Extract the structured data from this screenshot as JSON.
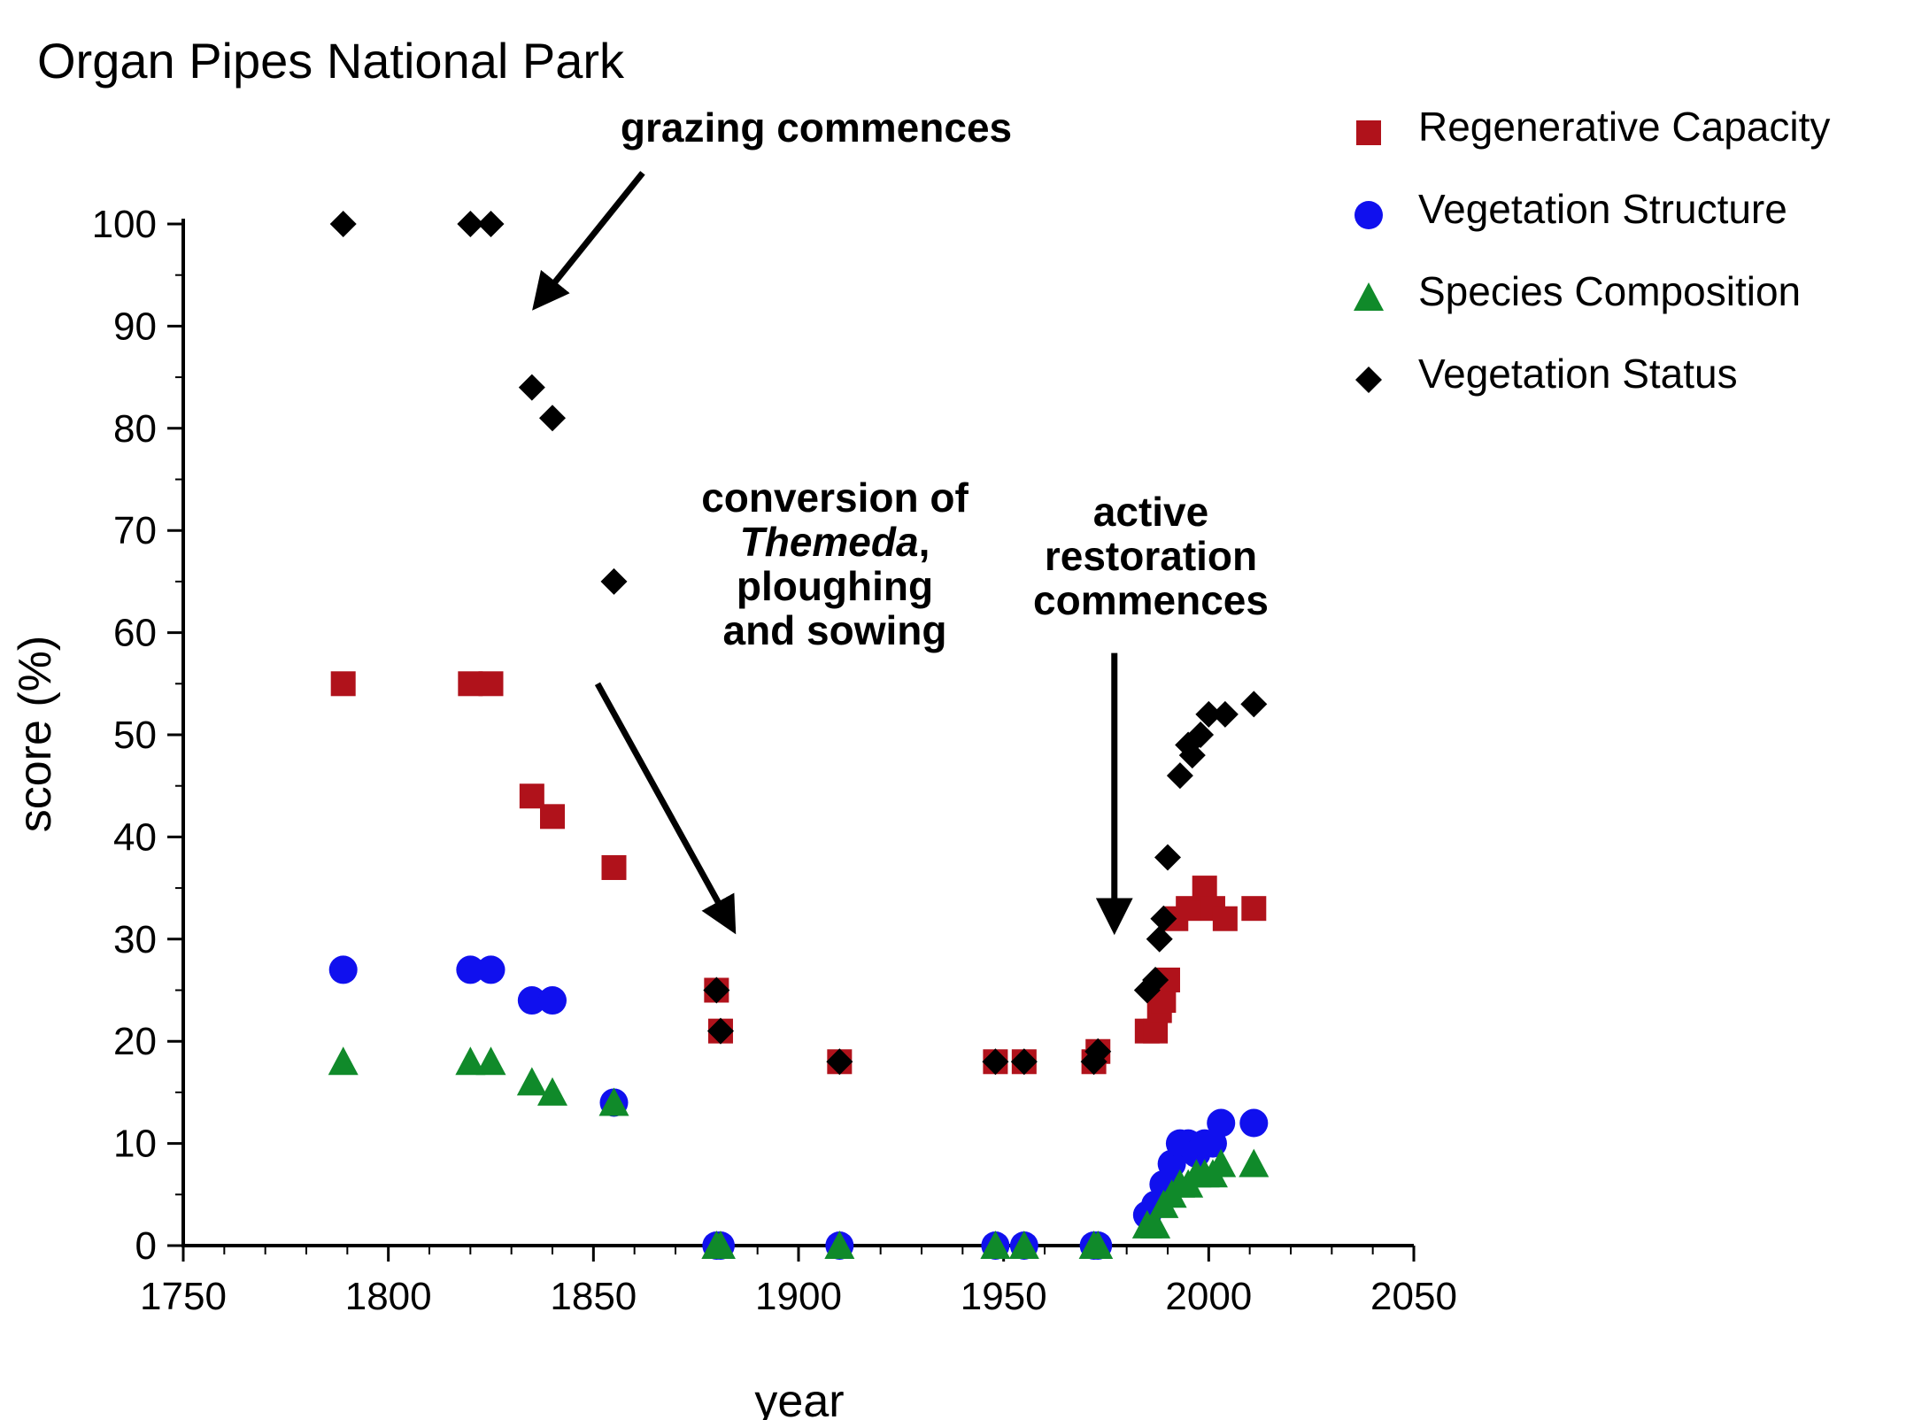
{
  "chart_data": {
    "type": "scatter",
    "title": "Organ Pipes National Park",
    "xlabel": "year",
    "ylabel": "score (%)",
    "xlim": [
      1750,
      2050
    ],
    "ylim": [
      0,
      100
    ],
    "xticks": [
      1750,
      1800,
      1850,
      1900,
      1950,
      2000,
      2050
    ],
    "yticks": [
      0,
      10,
      20,
      30,
      40,
      50,
      60,
      70,
      80,
      90,
      100
    ],
    "legend_position": "top-right",
    "series": [
      {
        "name": "Regenerative Capacity",
        "marker": "square",
        "color": "#b0121b",
        "points": [
          [
            1789,
            55
          ],
          [
            1820,
            55
          ],
          [
            1825,
            55
          ],
          [
            1835,
            44
          ],
          [
            1840,
            42
          ],
          [
            1855,
            37
          ],
          [
            1880,
            25
          ],
          [
            1881,
            21
          ],
          [
            1910,
            18
          ],
          [
            1948,
            18
          ],
          [
            1955,
            18
          ],
          [
            1972,
            18
          ],
          [
            1973,
            19
          ],
          [
            1985,
            21
          ],
          [
            1987,
            21
          ],
          [
            1988,
            23
          ],
          [
            1989,
            24
          ],
          [
            1990,
            26
          ],
          [
            1992,
            32
          ],
          [
            1995,
            33
          ],
          [
            1999,
            35
          ],
          [
            2001,
            33
          ],
          [
            2004,
            32
          ],
          [
            2011,
            33
          ]
        ]
      },
      {
        "name": "Vegetation Structure",
        "marker": "circle",
        "color": "#1010ee",
        "points": [
          [
            1789,
            27
          ],
          [
            1820,
            27
          ],
          [
            1825,
            27
          ],
          [
            1835,
            24
          ],
          [
            1840,
            24
          ],
          [
            1855,
            14
          ],
          [
            1880,
            0
          ],
          [
            1881,
            0
          ],
          [
            1910,
            0
          ],
          [
            1948,
            0
          ],
          [
            1955,
            0
          ],
          [
            1972,
            0
          ],
          [
            1973,
            0
          ],
          [
            1985,
            3
          ],
          [
            1987,
            4
          ],
          [
            1989,
            6
          ],
          [
            1991,
            8
          ],
          [
            1993,
            10
          ],
          [
            1995,
            10
          ],
          [
            1997,
            9
          ],
          [
            1999,
            10
          ],
          [
            2001,
            10
          ],
          [
            2003,
            12
          ],
          [
            2011,
            12
          ]
        ]
      },
      {
        "name": "Species Composition",
        "marker": "triangle",
        "color": "#108a2a",
        "points": [
          [
            1789,
            18
          ],
          [
            1820,
            18
          ],
          [
            1825,
            18
          ],
          [
            1835,
            16
          ],
          [
            1840,
            15
          ],
          [
            1855,
            14
          ],
          [
            1880,
            0
          ],
          [
            1881,
            0
          ],
          [
            1910,
            0
          ],
          [
            1948,
            0
          ],
          [
            1955,
            0
          ],
          [
            1972,
            0
          ],
          [
            1973,
            0
          ],
          [
            1985,
            2
          ],
          [
            1987,
            2
          ],
          [
            1989,
            4
          ],
          [
            1991,
            5
          ],
          [
            1993,
            6
          ],
          [
            1995,
            6
          ],
          [
            1997,
            7
          ],
          [
            1999,
            7
          ],
          [
            2001,
            7
          ],
          [
            2003,
            8
          ],
          [
            2011,
            8
          ]
        ]
      },
      {
        "name": "Vegetation Status",
        "marker": "diamond",
        "color": "#000000",
        "points": [
          [
            1789,
            100
          ],
          [
            1820,
            100
          ],
          [
            1825,
            100
          ],
          [
            1835,
            84
          ],
          [
            1840,
            81
          ],
          [
            1855,
            65
          ],
          [
            1880,
            25
          ],
          [
            1881,
            21
          ],
          [
            1910,
            18
          ],
          [
            1948,
            18
          ],
          [
            1955,
            18
          ],
          [
            1972,
            18
          ],
          [
            1973,
            19
          ],
          [
            1985,
            25
          ],
          [
            1987,
            26
          ],
          [
            1988,
            30
          ],
          [
            1989,
            32
          ],
          [
            1990,
            38
          ],
          [
            1993,
            46
          ],
          [
            1995,
            49
          ],
          [
            1996,
            48
          ],
          [
            1998,
            50
          ],
          [
            2000,
            52
          ],
          [
            2004,
            52
          ],
          [
            2011,
            53
          ]
        ]
      }
    ],
    "annotations": [
      {
        "lines": [
          [
            "grazing commences"
          ]
        ],
        "arrow_from": [
          1862,
          105
        ],
        "arrow_to": [
          1836,
          92
        ]
      },
      {
        "lines": [
          [
            "conversion of"
          ],
          [
            "Themeda",
            ","
          ],
          [
            "ploughing"
          ],
          [
            "and sowing"
          ]
        ],
        "italic_first_segment_line": 1,
        "arrow_from": [
          1851,
          55
        ],
        "arrow_to": [
          1884,
          31
        ]
      },
      {
        "lines": [
          [
            "active"
          ],
          [
            "restoration"
          ],
          [
            "commences"
          ]
        ],
        "arrow_from": [
          1977,
          58
        ],
        "arrow_to": [
          1977,
          31
        ]
      }
    ]
  }
}
